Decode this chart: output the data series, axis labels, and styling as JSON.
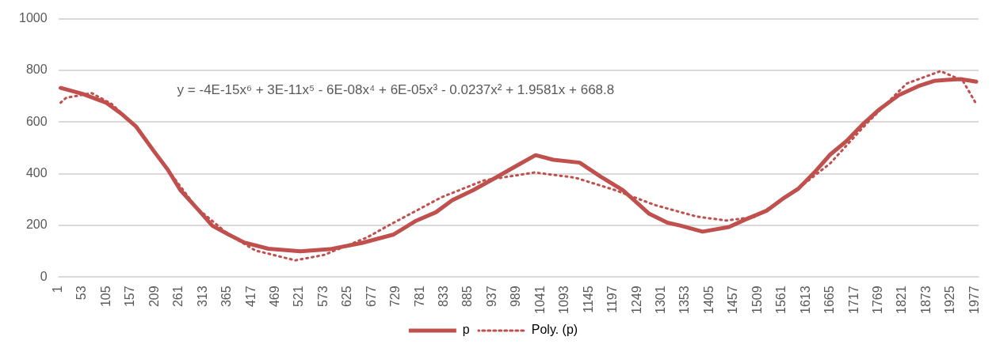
{
  "chart_data": {
    "type": "line",
    "annotations": [
      "y = -4E-15x⁶ + 3E-11x⁵ - 6E-08x⁴ + 6E-05x³ - 0.0237x² + 1.9581x + 668.8"
    ],
    "xlim": [
      1,
      1985
    ],
    "xticks": [
      1,
      53,
      105,
      157,
      209,
      261,
      313,
      365,
      417,
      469,
      521,
      573,
      625,
      677,
      729,
      781,
      833,
      885,
      937,
      989,
      1041,
      1093,
      1145,
      1197,
      1249,
      1301,
      1353,
      1405,
      1457,
      1509,
      1561,
      1613,
      1665,
      1717,
      1769,
      1821,
      1873,
      1925,
      1977
    ],
    "ylim": [
      0,
      1000
    ],
    "yticks": [
      0,
      200,
      400,
      600,
      800,
      1000
    ],
    "grid": "y",
    "legend": "bottom",
    "marker": "none",
    "series": [
      {
        "name": "p",
        "color": "#c0504d",
        "line_style": "solid",
        "x": [
          6,
          53,
          104,
          139,
          168,
          208,
          237,
          264,
          299,
          333,
          368,
          402,
          454,
          523,
          586,
          655,
          724,
          770,
          815,
          850,
          896,
          942,
          987,
          1030,
          1068,
          1125,
          1171,
          1218,
          1275,
          1314,
          1343,
          1390,
          1447,
          1481,
          1528,
          1562,
          1597,
          1631,
          1665,
          1700,
          1734,
          1769,
          1813,
          1855,
          1889,
          1917,
          1946,
          1980
        ],
        "values": [
          732,
          709,
          675,
          629,
          584,
          485,
          416,
          337,
          268,
          199,
          165,
          134,
          110,
          100,
          108,
          132,
          165,
          216,
          251,
          297,
          337,
          383,
          429,
          472,
          454,
          443,
          388,
          337,
          245,
          211,
          199,
          176,
          194,
          222,
          257,
          302,
          343,
          405,
          474,
          526,
          589,
          646,
          704,
          739,
          759,
          763,
          766,
          756
        ]
      },
      {
        "name": "Poly. (p)",
        "color": "#c0504d",
        "line_style": "dotted",
        "x": [
          6,
          18,
          73,
          116,
          168,
          237,
          299,
          368,
          426,
          512,
          574,
          667,
          712,
          827,
          918,
          1028,
          1115,
          1201,
          1287,
          1378,
          1442,
          1504,
          1584,
          1665,
          1744,
          1830,
          1903,
          1951,
          1980
        ],
        "values": [
          675,
          694,
          712,
          670,
          584,
          416,
          268,
          165,
          103,
          65,
          86,
          154,
          199,
          309,
          374,
          405,
          385,
          337,
          279,
          234,
          219,
          234,
          326,
          440,
          595,
          749,
          797,
          760,
          670
        ]
      }
    ]
  }
}
